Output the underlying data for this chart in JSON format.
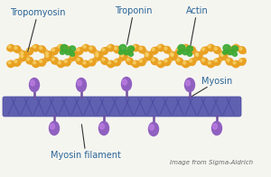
{
  "background_color": "#f5f5f0",
  "title": "",
  "labels": {
    "tropomyosin": "Tropomyosin",
    "troponin": "Troponin",
    "actin": "Actin",
    "myosin": "Myosin",
    "myosin_filament": "Myosin filament",
    "image_credit": "Image from Sigma-Aldrich"
  },
  "label_color": "#2a6496",
  "actin_color": "#f0a830",
  "actin_bead_color": "#e8a020",
  "troponin_color": "#3aaa35",
  "myosin_filament_color": "#6060b0",
  "myosin_filament_stripe_color": "#4848a0",
  "myosin_head_color": "#9060c0",
  "myosin_head_highlight": "#cc88ee",
  "myosin_stem_color": "#7050a0",
  "annotation_line_color": "#333333",
  "font_size_label": 7,
  "font_size_credit": 5
}
